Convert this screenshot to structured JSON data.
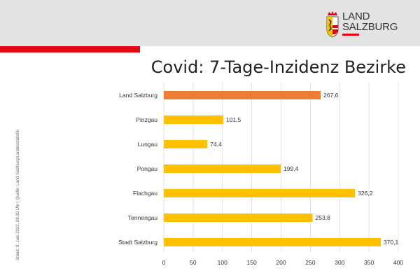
{
  "header": {
    "logo_line1": "LAND",
    "logo_line2": "SALZBURG"
  },
  "side_note": "Stand: 9. Juni 2022, 08.30 Uhr | Quelle: Land Salzburg/Landesstatistik",
  "colors": {
    "highlight": "#ed7d31",
    "bar": "#ffc000",
    "accent_red": "#e30613",
    "header_bg": "#e3e3e3"
  },
  "chart_data": {
    "type": "bar",
    "orientation": "horizontal",
    "title": "Covid: 7-Tage-Inzidenz Bezirke",
    "categories": [
      "Land Salzburg",
      "Pinzgau",
      "Lungau",
      "Pongau",
      "Flachgau",
      "Tennengau",
      "Stadt Salzburg"
    ],
    "values": [
      267.6,
      101.5,
      74.4,
      199.4,
      326.2,
      253.8,
      370.1
    ],
    "value_labels": [
      "267,6",
      "101,5",
      "74,4",
      "199,4",
      "326,2",
      "253,8",
      "370,1"
    ],
    "highlight_index": 0,
    "xlim": [
      0,
      400
    ],
    "xticks": [
      0,
      50,
      100,
      150,
      200,
      250,
      300,
      350,
      400
    ],
    "grid": "vertical",
    "legend": "none"
  }
}
